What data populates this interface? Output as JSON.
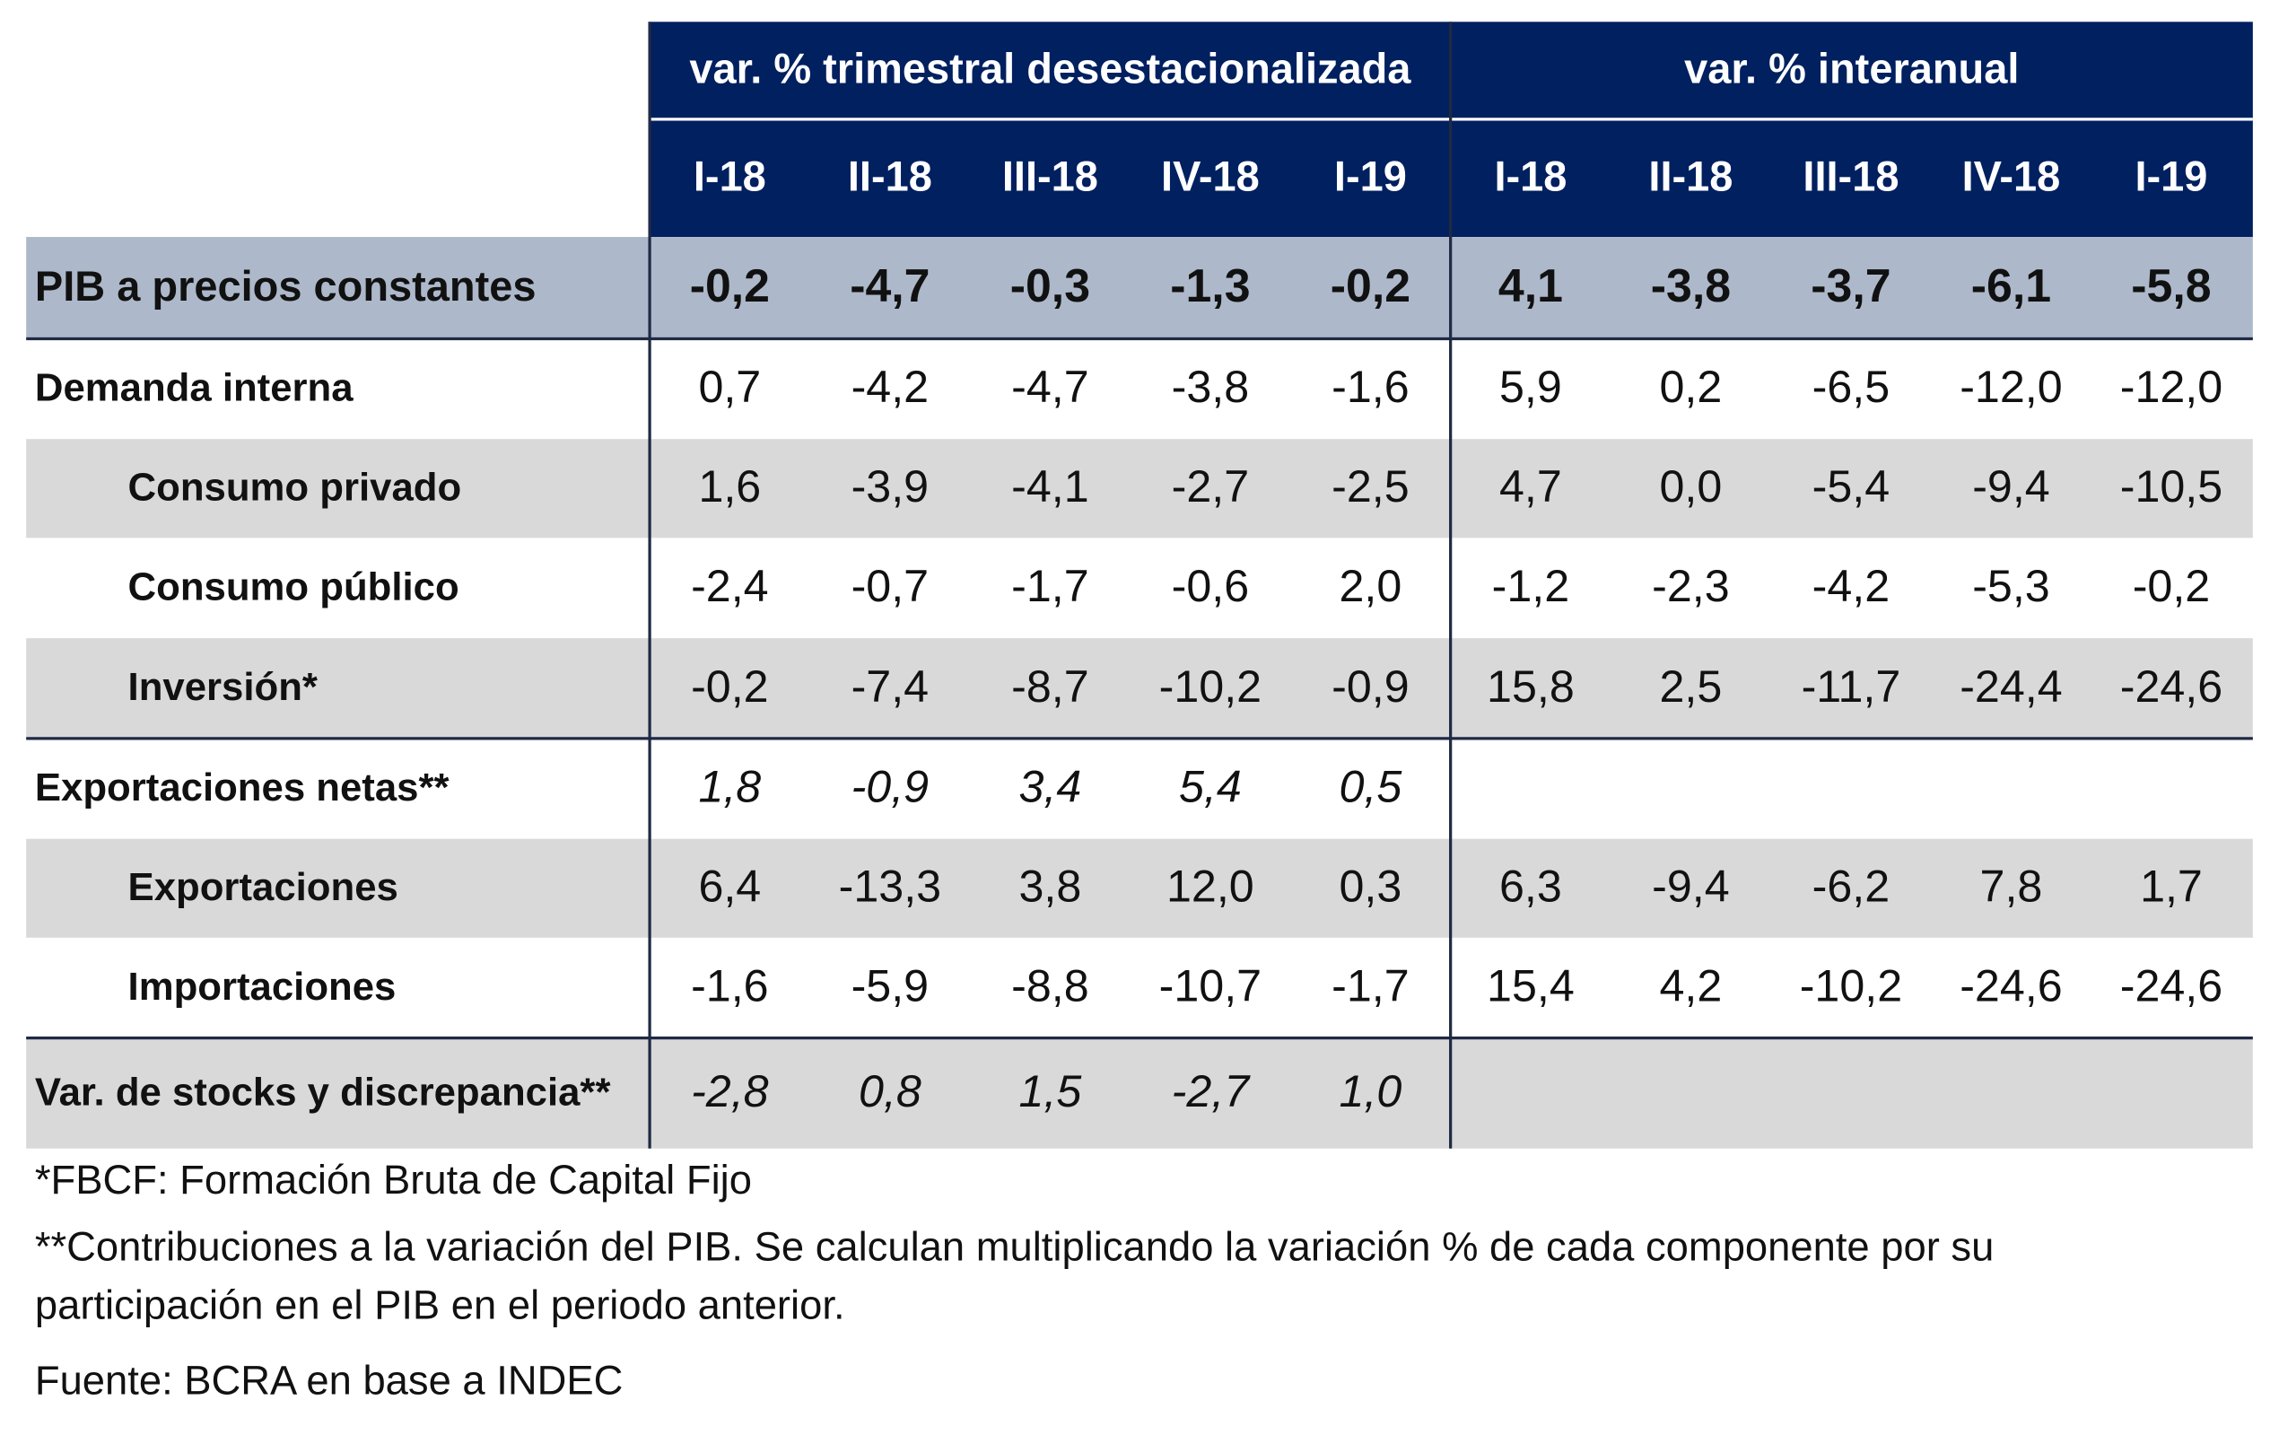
{
  "table": {
    "groups": [
      "var. % trimestral desestacionalizada",
      "var. % interanual"
    ],
    "periods": [
      "I-18",
      "II-18",
      "III-18",
      "IV-18",
      "I-19",
      "I-18",
      "II-18",
      "III-18",
      "IV-18",
      "I-19"
    ],
    "rows": [
      {
        "label": "PIB a precios constantes",
        "values": [
          "-0,2",
          "-4,7",
          "-0,3",
          "-1,3",
          "-0,2",
          "4,1",
          "-3,8",
          "-3,7",
          "-6,1",
          "-5,8"
        ]
      },
      {
        "label": "Demanda interna",
        "values": [
          "0,7",
          "-4,2",
          "-4,7",
          "-3,8",
          "-1,6",
          "5,9",
          "0,2",
          "-6,5",
          "-12,0",
          "-12,0"
        ]
      },
      {
        "label": "Consumo privado",
        "values": [
          "1,6",
          "-3,9",
          "-4,1",
          "-2,7",
          "-2,5",
          "4,7",
          "0,0",
          "-5,4",
          "-9,4",
          "-10,5"
        ]
      },
      {
        "label": "Consumo público",
        "values": [
          "-2,4",
          "-0,7",
          "-1,7",
          "-0,6",
          "2,0",
          "-1,2",
          "-2,3",
          "-4,2",
          "-5,3",
          "-0,2"
        ]
      },
      {
        "label": "Inversión*",
        "values": [
          "-0,2",
          "-7,4",
          "-8,7",
          "-10,2",
          "-0,9",
          "15,8",
          "2,5",
          "-11,7",
          "-24,4",
          "-24,6"
        ]
      },
      {
        "label": "Exportaciones netas**",
        "values": [
          "1,8",
          "-0,9",
          "3,4",
          "5,4",
          "0,5",
          null,
          null,
          null,
          null,
          null
        ]
      },
      {
        "label": "Exportaciones",
        "values": [
          "6,4",
          "-13,3",
          "3,8",
          "12,0",
          "0,3",
          "6,3",
          "-9,4",
          "-6,2",
          "7,8",
          "1,7"
        ]
      },
      {
        "label": "Importaciones",
        "values": [
          "-1,6",
          "-5,9",
          "-8,8",
          "-10,7",
          "-1,7",
          "15,4",
          "4,2",
          "-10,2",
          "-24,6",
          "-24,6"
        ]
      },
      {
        "label": "Var. de stocks y discrepancia**",
        "values": [
          "-2,8",
          "0,8",
          "1,5",
          "-2,7",
          "1,0",
          null,
          null,
          null,
          null,
          null
        ]
      }
    ]
  },
  "footnotes": [
    "*FBCF: Formación Bruta de Capital Fijo",
    "**Contribuciones a la variación del PIB. Se calculan multiplicando la variación % de cada componente por su participación en el PIB en el periodo anterior.",
    "Fuente: BCRA en base a INDEC"
  ]
}
